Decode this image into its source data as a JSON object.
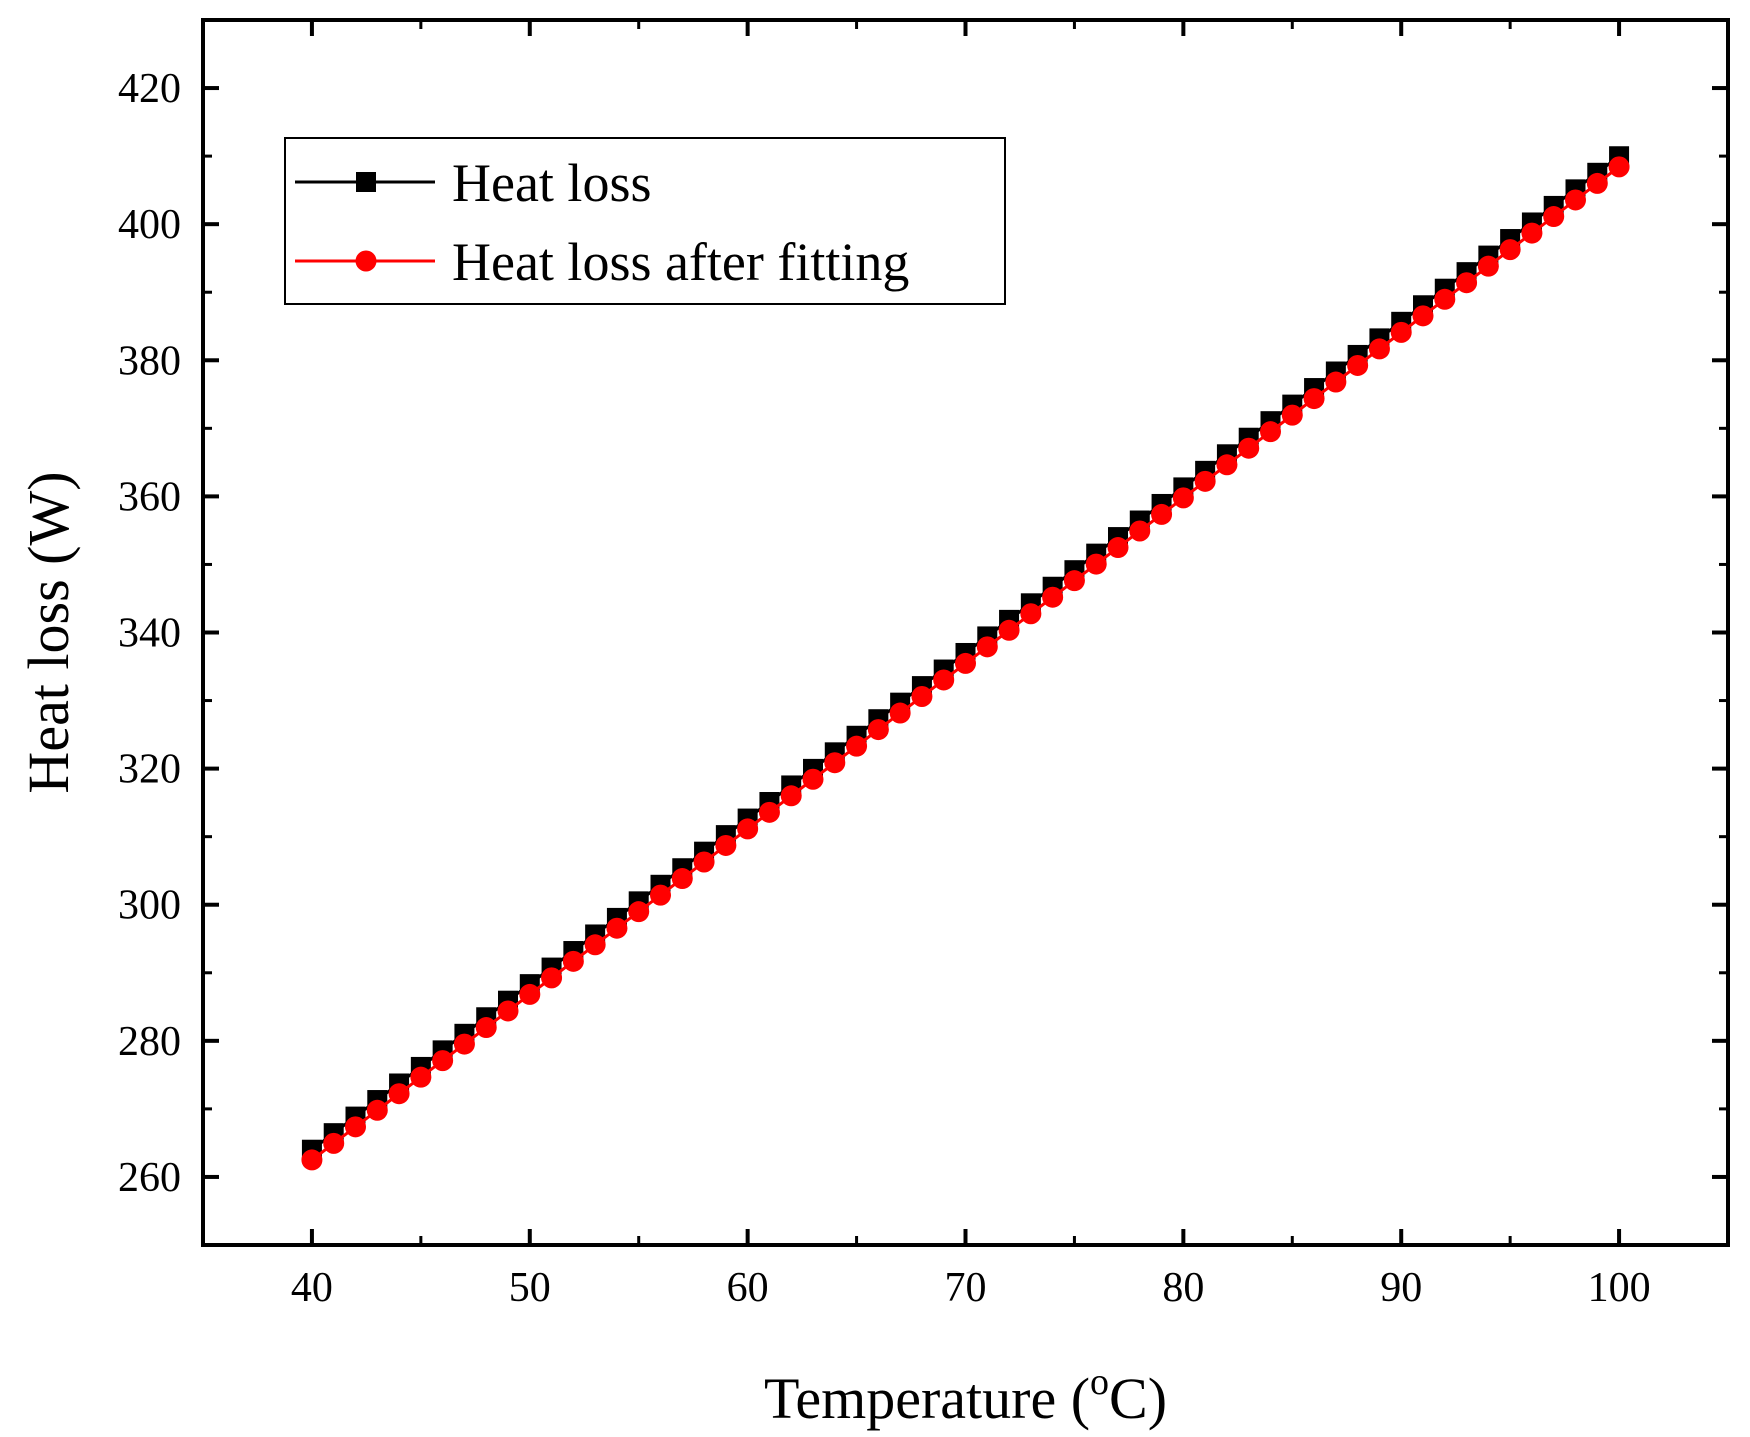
{
  "chart_data": {
    "type": "line",
    "title": "",
    "xlabel_main": "Temperature (",
    "xlabel_sup": "o",
    "xlabel_tail": "C)",
    "ylabel": "Heat loss (W)",
    "xlim": [
      35,
      105
    ],
    "ylim": [
      250,
      430
    ],
    "xticks": [
      40,
      50,
      60,
      70,
      80,
      90,
      100
    ],
    "xtick_labels": [
      "40",
      "50",
      "60",
      "70",
      "80",
      "90",
      "100"
    ],
    "yticks": [
      260,
      280,
      300,
      320,
      340,
      360,
      380,
      400,
      420
    ],
    "ytick_labels": [
      "260",
      "280",
      "300",
      "320",
      "340",
      "360",
      "380",
      "400",
      "420"
    ],
    "legend_position": "top-left",
    "series": [
      {
        "name": "Heat loss",
        "color": "#000000",
        "marker": "square",
        "x_start": 40,
        "x_step": 1,
        "y_start": 264.0,
        "y_step": 2.433
      },
      {
        "name": "Heat loss after fitting",
        "color": "#ff0000",
        "marker": "circle",
        "x_start": 40,
        "x_step": 1,
        "y_start": 262.5,
        "y_step": 2.432
      }
    ],
    "n_points": 61
  }
}
